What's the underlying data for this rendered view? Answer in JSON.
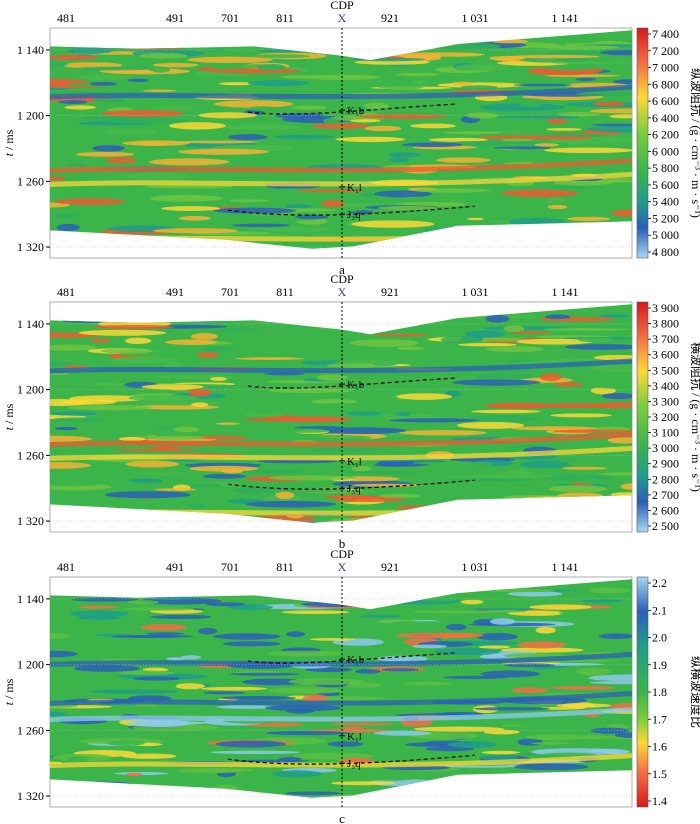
{
  "figure": {
    "cdp_axis_title": "CDP",
    "cdp_marker_label": "X",
    "time_axis_title_italic": "t",
    "time_axis_title_unit": " / ms",
    "colors": {
      "seismic_accent": "#2b3bb8"
    }
  },
  "chart_data": [
    {
      "type": "heatmap",
      "panel_label": "a",
      "x_tick_labels": [
        "481",
        "491",
        "701",
        "811",
        "921",
        "1 031",
        "1 141"
      ],
      "y_tick_labels": [
        "1 140",
        "1 200",
        "1 260",
        "1 320"
      ],
      "y_ticks": [
        1140,
        1200,
        1260,
        1320
      ],
      "ylim": [
        1120,
        1330
      ],
      "colorbar_title": "纵波阻抗 / (g · cm⁻³ · m · s⁻¹)",
      "colorbar_ticks": [
        "7 400",
        "7 200",
        "7 000",
        "6 800",
        "6 600",
        "6 400",
        "6 200",
        "6 000",
        "5 800",
        "5 600",
        "5 400",
        "5 200",
        "5 000",
        "4 800"
      ],
      "colorbar_range": [
        4800,
        7400
      ],
      "colorscale": "blue-green-yellow-red",
      "horizon_labels": [
        {
          "label": "K₁b",
          "time_ms": 1195
        },
        {
          "label": "K₁l",
          "time_ms": 1265
        },
        {
          "label": "J₃q",
          "time_ms": 1290
        }
      ]
    },
    {
      "type": "heatmap",
      "panel_label": "b",
      "x_tick_labels": [
        "481",
        "491",
        "701",
        "811",
        "921",
        "1 031",
        "1 141"
      ],
      "y_tick_labels": [
        "1 140",
        "1 200",
        "1 260",
        "1 320"
      ],
      "y_ticks": [
        1140,
        1200,
        1260,
        1320
      ],
      "ylim": [
        1120,
        1330
      ],
      "colorbar_title": "横波阻抗 / (g · cm⁻³ · m · s⁻¹)",
      "colorbar_ticks": [
        "3 900",
        "3 800",
        "3 700",
        "3 600",
        "3 500",
        "3 400",
        "3 300",
        "3 200",
        "3 100",
        "3 000",
        "2 900",
        "2 800",
        "2 700",
        "2 600",
        "2 500"
      ],
      "colorbar_range": [
        2500,
        3900
      ],
      "colorscale": "blue-green-yellow-red",
      "horizon_labels": [
        {
          "label": "K₁b",
          "time_ms": 1195
        },
        {
          "label": "K₁l",
          "time_ms": 1265
        },
        {
          "label": "J₃q",
          "time_ms": 1290
        }
      ]
    },
    {
      "type": "heatmap",
      "panel_label": "c",
      "x_tick_labels": [
        "481",
        "491",
        "701",
        "811",
        "921",
        "1 031",
        "1 141"
      ],
      "y_tick_labels": [
        "1 140",
        "1 200",
        "1 260",
        "1 320"
      ],
      "y_ticks": [
        1140,
        1200,
        1260,
        1320
      ],
      "ylim": [
        1120,
        1330
      ],
      "colorbar_title": "纵横波速度比",
      "colorbar_ticks": [
        "2.2",
        "2.1",
        "2.0",
        "1.9",
        "1.8",
        "1.7",
        "1.6",
        "1.5",
        "1.4"
      ],
      "colorbar_range": [
        1.4,
        2.2
      ],
      "colorscale": "red-yellow-green-blue",
      "horizon_labels": [
        {
          "label": "K₁b",
          "time_ms": 1195
        },
        {
          "label": "K₁l",
          "time_ms": 1265
        },
        {
          "label": "J₃q",
          "time_ms": 1290
        }
      ]
    }
  ]
}
